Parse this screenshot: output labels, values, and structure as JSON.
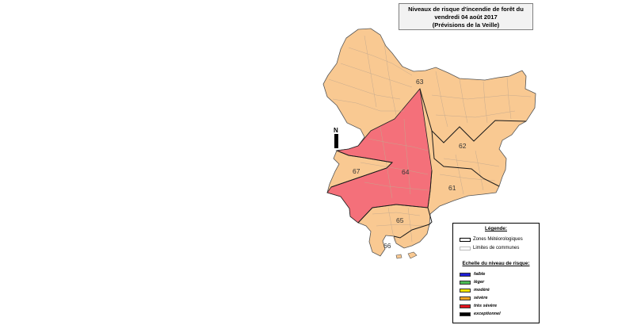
{
  "title": {
    "line1": "Niveaux de risque d'incendie de forêt du",
    "line2": "vendredi 04 août 2017",
    "line3": "(Prévisions de la Veille)"
  },
  "north_label": "N",
  "colors": {
    "severe": "#f9c992",
    "tres_severe": "#f4707a",
    "commune_line": "#c8b7a8",
    "zone_line": "#000000"
  },
  "zones": [
    {
      "id": "63",
      "label": "63",
      "level": "sévère"
    },
    {
      "id": "62",
      "label": "62",
      "level": "sévère"
    },
    {
      "id": "61",
      "label": "61",
      "level": "sévère"
    },
    {
      "id": "64",
      "label": "64",
      "level": "très sévère"
    },
    {
      "id": "67",
      "label": "67",
      "level": "sévère"
    },
    {
      "id": "65",
      "label": "65",
      "level": "sévère"
    },
    {
      "id": "66",
      "label": "66",
      "level": "sévère"
    }
  ],
  "legend": {
    "heading": "Légende:",
    "zones_label": "Zones Météorologiques",
    "communes_label": "Limites de communes",
    "scale_heading": "Echelle du niveau de risque:",
    "levels": [
      {
        "label": "faible",
        "color": "#1f1fd6"
      },
      {
        "label": "léger",
        "color": "#4dbb55"
      },
      {
        "label": "modéré",
        "color": "#f2e400"
      },
      {
        "label": "sévère",
        "color": "#f5a623"
      },
      {
        "label": "très sévère",
        "color": "#e2131e"
      },
      {
        "label": "exceptionnel",
        "color": "#000000"
      }
    ]
  }
}
